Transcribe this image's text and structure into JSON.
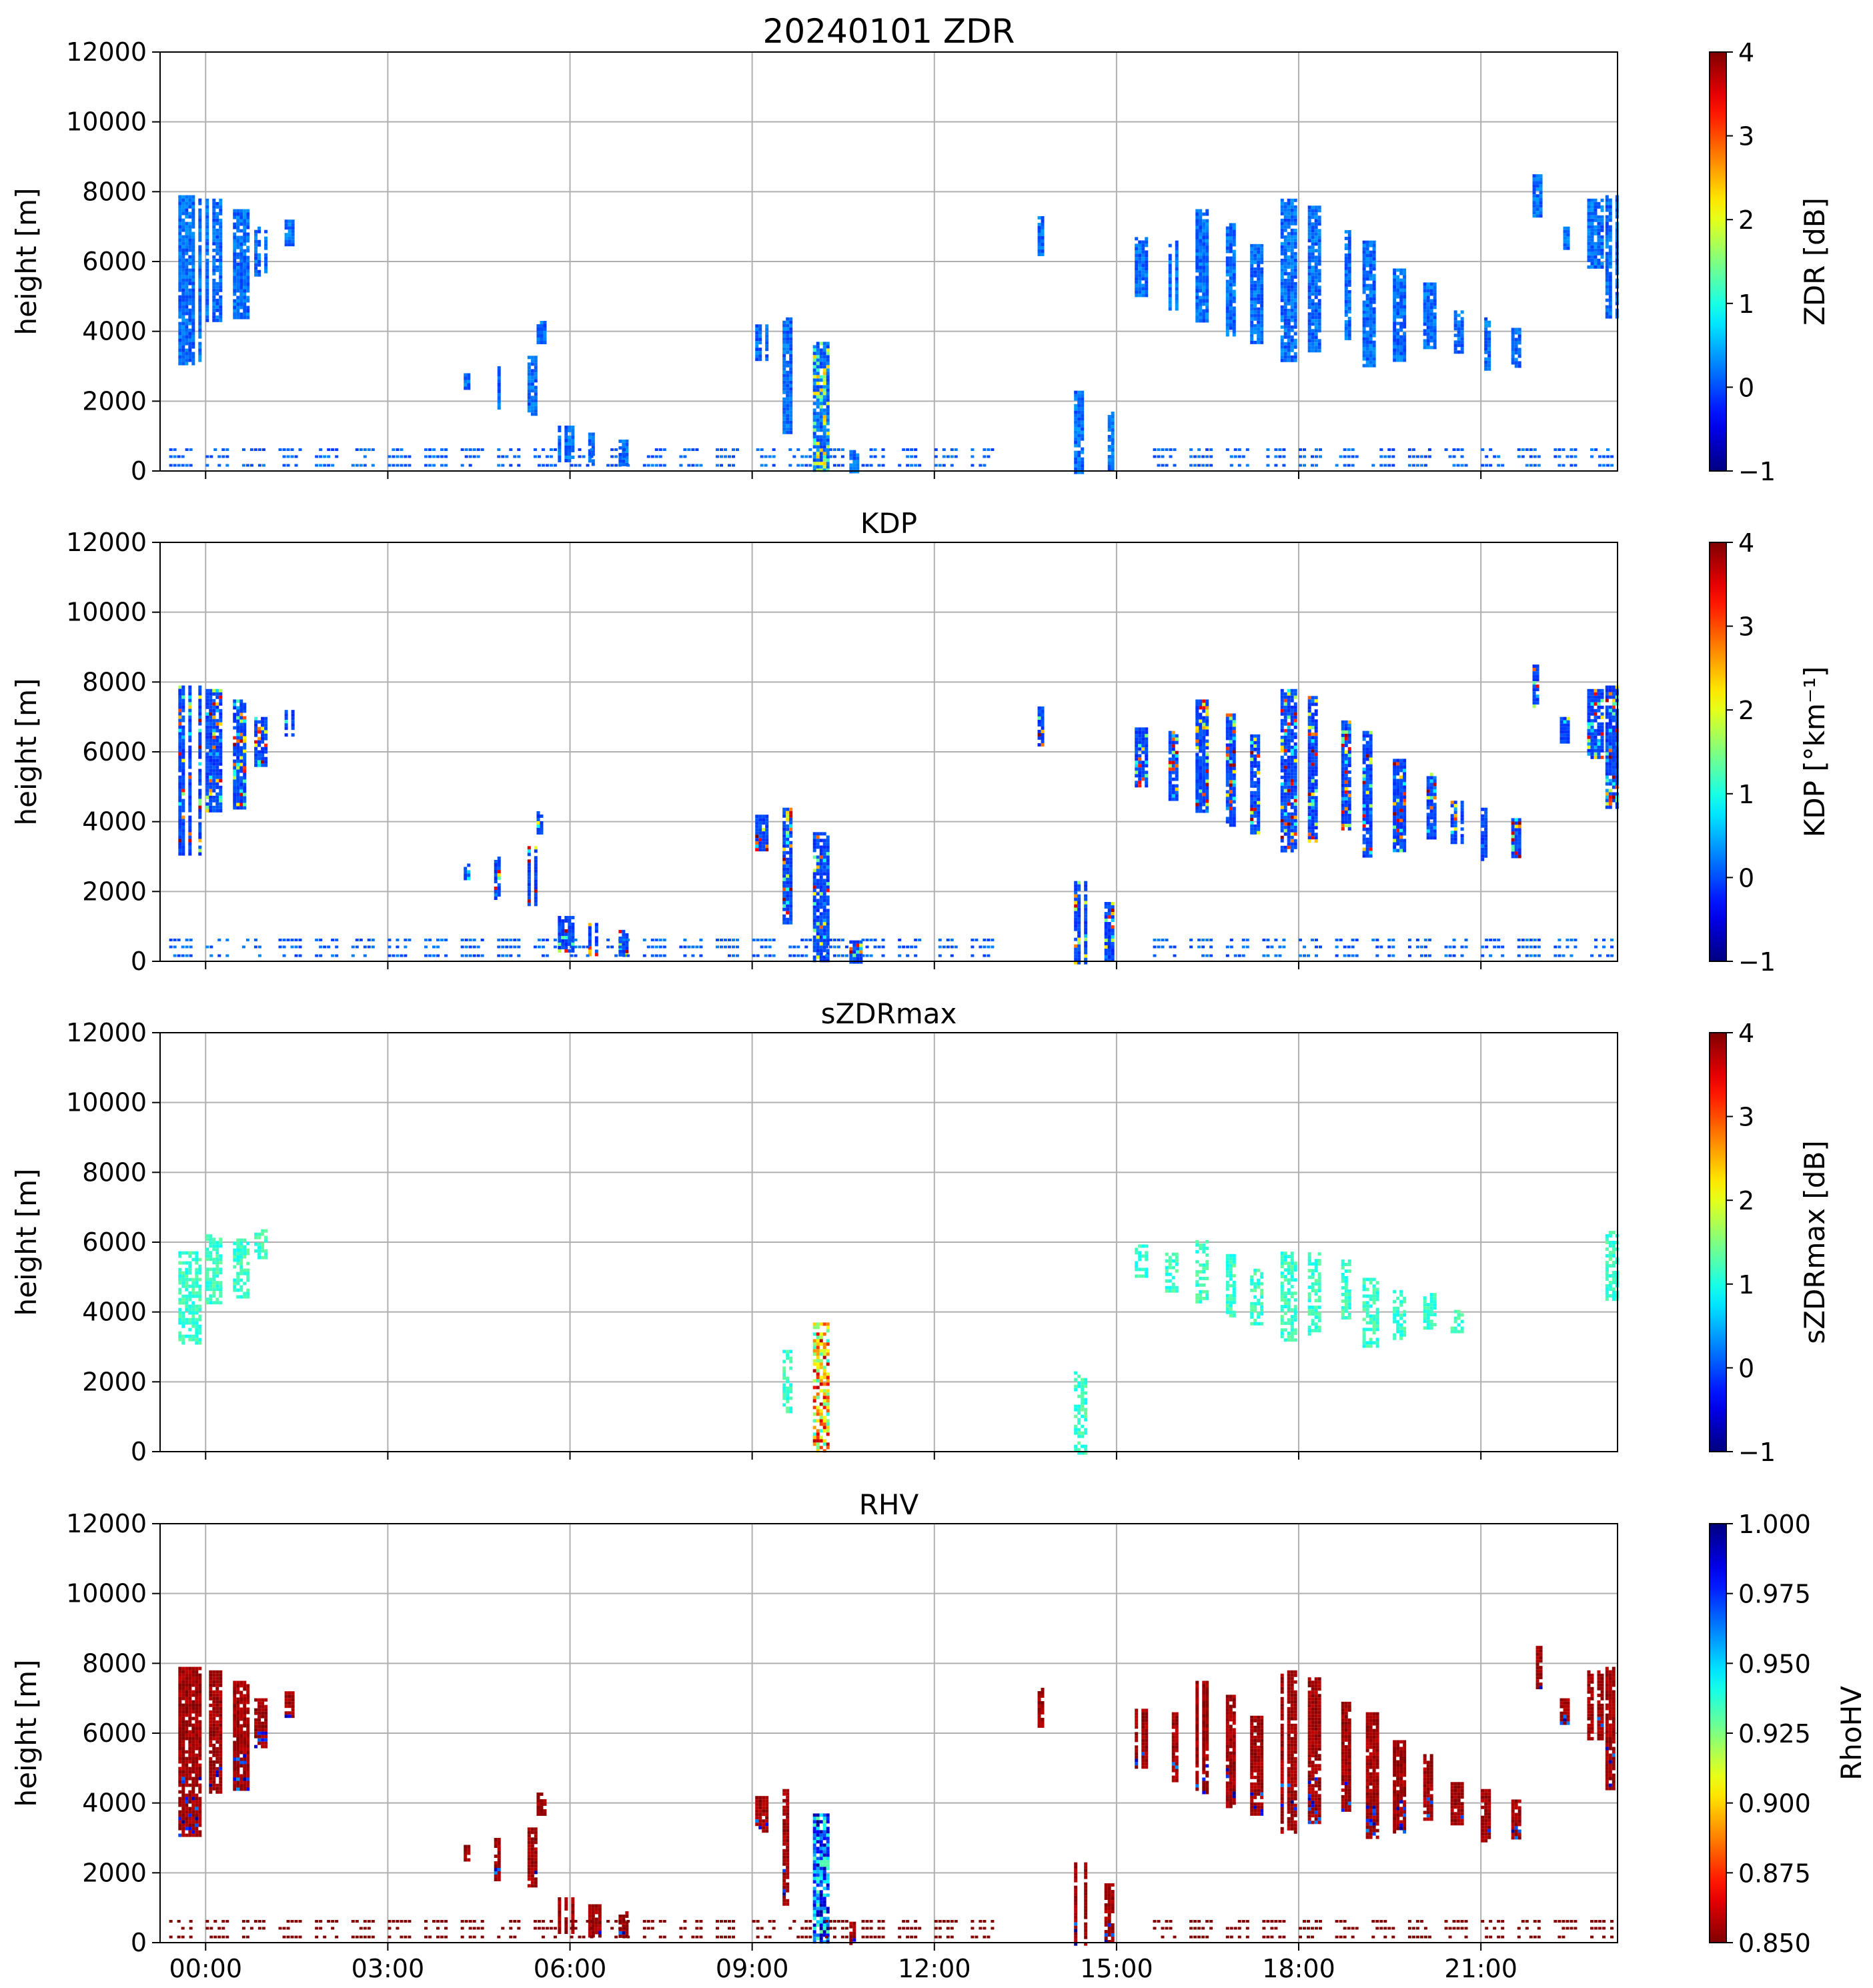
{
  "figure": {
    "background": "#ffffff"
  },
  "chart_data": [
    {
      "type": "heatmap",
      "id": "zdr",
      "title": "20240101 ZDR",
      "xlabel": "",
      "ylabel": "height [m]",
      "xlim_hours": [
        -0.75,
        23.25
      ],
      "ylim": [
        0,
        12000
      ],
      "yticks": [
        0,
        2000,
        4000,
        6000,
        8000,
        10000,
        12000
      ],
      "xticks_hours": [
        0,
        3,
        6,
        9,
        12,
        15,
        18,
        21
      ],
      "xtick_labels": [],
      "grid": true,
      "colorbar": {
        "label": "ZDR [dB]",
        "min": -1,
        "max": 4,
        "ticks": [
          -1,
          0,
          1,
          2,
          3,
          4
        ],
        "tick_labels": [
          "−1",
          "0",
          "1",
          "2",
          "3",
          "4"
        ],
        "cmap": "jet"
      },
      "echo_profile": "zdr"
    },
    {
      "type": "heatmap",
      "id": "kdp",
      "title": "KDP",
      "xlabel": "",
      "ylabel": "height [m]",
      "xlim_hours": [
        -0.75,
        23.25
      ],
      "ylim": [
        0,
        12000
      ],
      "yticks": [
        0,
        2000,
        4000,
        6000,
        8000,
        10000,
        12000
      ],
      "xticks_hours": [
        0,
        3,
        6,
        9,
        12,
        15,
        18,
        21
      ],
      "xtick_labels": [],
      "grid": true,
      "colorbar": {
        "label": "KDP [°km⁻¹]",
        "min": -1,
        "max": 4,
        "ticks": [
          -1,
          0,
          1,
          2,
          3,
          4
        ],
        "tick_labels": [
          "−1",
          "0",
          "1",
          "2",
          "3",
          "4"
        ],
        "cmap": "jet"
      },
      "echo_profile": "kdp"
    },
    {
      "type": "heatmap",
      "id": "szdrmax",
      "title": "sZDRmax",
      "xlabel": "",
      "ylabel": "height [m]",
      "xlim_hours": [
        -0.75,
        23.25
      ],
      "ylim": [
        0,
        12000
      ],
      "yticks": [
        0,
        2000,
        4000,
        6000,
        8000,
        10000,
        12000
      ],
      "xticks_hours": [
        0,
        3,
        6,
        9,
        12,
        15,
        18,
        21
      ],
      "xtick_labels": [],
      "grid": true,
      "colorbar": {
        "label": "sZDRmax [dB]",
        "min": -1,
        "max": 4,
        "ticks": [
          -1,
          0,
          1,
          2,
          3,
          4
        ],
        "tick_labels": [
          "−1",
          "0",
          "1",
          "2",
          "3",
          "4"
        ],
        "cmap": "jet"
      },
      "echo_profile": "szdrmax"
    },
    {
      "type": "heatmap",
      "id": "rhv",
      "title": "RHV",
      "xlabel": "",
      "ylabel": "height [m]",
      "xlim_hours": [
        -0.75,
        23.25
      ],
      "ylim": [
        0,
        12000
      ],
      "yticks": [
        0,
        2000,
        4000,
        6000,
        8000,
        10000,
        12000
      ],
      "xticks_hours": [
        0,
        3,
        6,
        9,
        12,
        15,
        18,
        21
      ],
      "xtick_labels": [
        "00:00",
        "03:00",
        "06:00",
        "09:00",
        "12:00",
        "15:00",
        "18:00",
        "21:00"
      ],
      "grid": true,
      "colorbar": {
        "label": "RhoHV",
        "min": 0.85,
        "max": 1.0,
        "ticks": [
          0.85,
          0.875,
          0.9,
          0.925,
          0.95,
          0.975,
          1.0
        ],
        "tick_labels": [
          "0.850",
          "0.875",
          "0.900",
          "0.925",
          "0.950",
          "0.975",
          "1.000"
        ],
        "cmap": "jet_r"
      },
      "echo_profile": "rhv"
    }
  ],
  "echoes": [
    {
      "t0": -0.45,
      "t1": -0.1,
      "bot": 3100,
      "top": 7900
    },
    {
      "t0": 0.0,
      "t1": 0.25,
      "bot": 4300,
      "top": 7800
    },
    {
      "t0": 0.45,
      "t1": 0.7,
      "bot": 4400,
      "top": 7500
    },
    {
      "t0": 0.8,
      "t1": 1.0,
      "bot": 5600,
      "top": 7000
    },
    {
      "t0": 1.3,
      "t1": 1.45,
      "bot": 6500,
      "top": 7200
    },
    {
      "t0": 4.25,
      "t1": 4.35,
      "bot": 2400,
      "top": 2800
    },
    {
      "t0": 4.75,
      "t1": 4.85,
      "bot": 1800,
      "top": 3000
    },
    {
      "t0": 5.3,
      "t1": 5.45,
      "bot": 1600,
      "top": 3300
    },
    {
      "t0": 5.45,
      "t1": 5.6,
      "bot": 3700,
      "top": 4300
    },
    {
      "t0": 5.8,
      "t1": 6.05,
      "bot": 300,
      "top": 1300
    },
    {
      "t0": 6.3,
      "t1": 6.5,
      "bot": 200,
      "top": 1100
    },
    {
      "t0": 6.8,
      "t1": 6.95,
      "bot": 200,
      "top": 900
    },
    {
      "t0": 9.05,
      "t1": 9.25,
      "bot": 3200,
      "top": 4200
    },
    {
      "t0": 9.5,
      "t1": 9.65,
      "bot": 1100,
      "top": 4400
    },
    {
      "t0": 10.0,
      "t1": 10.25,
      "bot": 0,
      "top": 3700
    },
    {
      "t0": 10.6,
      "t1": 10.8,
      "bot": 0,
      "top": 600
    },
    {
      "t0": 13.7,
      "t1": 13.8,
      "bot": 6200,
      "top": 7300
    },
    {
      "t0": 14.3,
      "t1": 14.5,
      "bot": 0,
      "top": 2300
    },
    {
      "t0": 14.8,
      "t1": 14.95,
      "bot": 0,
      "top": 1700
    },
    {
      "t0": 15.3,
      "t1": 15.5,
      "bot": 5000,
      "top": 6700
    },
    {
      "t0": 15.8,
      "t1": 16.0,
      "bot": 4600,
      "top": 6600
    },
    {
      "t0": 16.3,
      "t1": 16.5,
      "bot": 4300,
      "top": 7500
    },
    {
      "t0": 16.8,
      "t1": 16.95,
      "bot": 3900,
      "top": 7100
    },
    {
      "t0": 17.2,
      "t1": 17.4,
      "bot": 3700,
      "top": 6500
    },
    {
      "t0": 17.7,
      "t1": 17.95,
      "bot": 3200,
      "top": 7800
    },
    {
      "t0": 18.15,
      "t1": 18.35,
      "bot": 3400,
      "top": 7600
    },
    {
      "t0": 18.7,
      "t1": 18.85,
      "bot": 3800,
      "top": 6900
    },
    {
      "t0": 19.05,
      "t1": 19.3,
      "bot": 3000,
      "top": 6600
    },
    {
      "t0": 19.55,
      "t1": 19.75,
      "bot": 3200,
      "top": 5800
    },
    {
      "t0": 20.05,
      "t1": 20.25,
      "bot": 3500,
      "top": 5400
    },
    {
      "t0": 20.5,
      "t1": 20.7,
      "bot": 3400,
      "top": 4600
    },
    {
      "t0": 21.0,
      "t1": 21.15,
      "bot": 2900,
      "top": 4400
    },
    {
      "t0": 21.5,
      "t1": 21.65,
      "bot": 3000,
      "top": 4100
    },
    {
      "t0": 21.85,
      "t1": 22.0,
      "bot": 7300,
      "top": 8500
    },
    {
      "t0": 22.3,
      "t1": 22.45,
      "bot": 6300,
      "top": 7000
    },
    {
      "t0": 22.75,
      "t1": 23.0,
      "bot": 5800,
      "top": 7800
    },
    {
      "t0": 23.05,
      "t1": 23.25,
      "bot": 4400,
      "top": 7900
    }
  ]
}
